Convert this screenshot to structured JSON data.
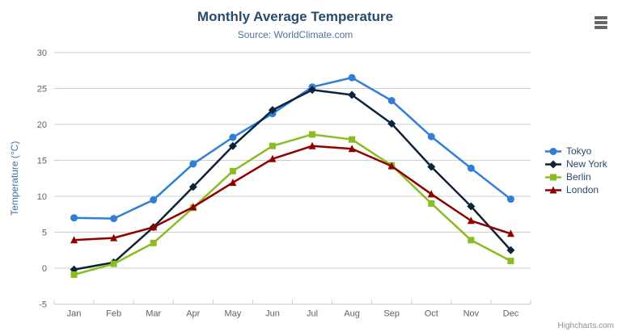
{
  "credits": "Highcharts.com",
  "colors": {
    "title": "#274b6d",
    "subtitle": "#4d759e",
    "axis_label": "#606060",
    "axis_title": "#4572a7",
    "grid": "#cccccc",
    "axis_line": "#c0d0e0",
    "legend_text": "#274b6d",
    "credits_text": "#909090",
    "menu_icon": "#666666"
  },
  "chart_data": {
    "type": "line",
    "title": "Monthly Average Temperature",
    "subtitle": "Source: WorldClimate.com",
    "categories": [
      "Jan",
      "Feb",
      "Mar",
      "Apr",
      "May",
      "Jun",
      "Jul",
      "Aug",
      "Sep",
      "Oct",
      "Nov",
      "Dec"
    ],
    "xlabel": "",
    "ylabel": "Temperature (°C)",
    "ylim": [
      -5,
      30
    ],
    "ytick_interval": 5,
    "grid": true,
    "legend_position": "right",
    "series": [
      {
        "name": "Tokyo",
        "color": "#2f7ed8",
        "marker": "circle",
        "values": [
          7.0,
          6.9,
          9.5,
          14.5,
          18.2,
          21.5,
          25.2,
          26.5,
          23.3,
          18.3,
          13.9,
          9.6
        ]
      },
      {
        "name": "New York",
        "color": "#0d233a",
        "marker": "diamond",
        "values": [
          -0.2,
          0.8,
          5.7,
          11.3,
          17.0,
          22.0,
          24.8,
          24.1,
          20.1,
          14.1,
          8.6,
          2.5
        ]
      },
      {
        "name": "Berlin",
        "color": "#8bbc21",
        "marker": "square",
        "values": [
          -0.9,
          0.6,
          3.5,
          8.4,
          13.5,
          17.0,
          18.6,
          17.9,
          14.3,
          9.0,
          3.9,
          1.0
        ]
      },
      {
        "name": "London",
        "color": "#910000",
        "marker": "triangle",
        "values": [
          3.9,
          4.2,
          5.7,
          8.5,
          11.9,
          15.2,
          17.0,
          16.6,
          14.2,
          10.3,
          6.6,
          4.8
        ]
      }
    ]
  }
}
